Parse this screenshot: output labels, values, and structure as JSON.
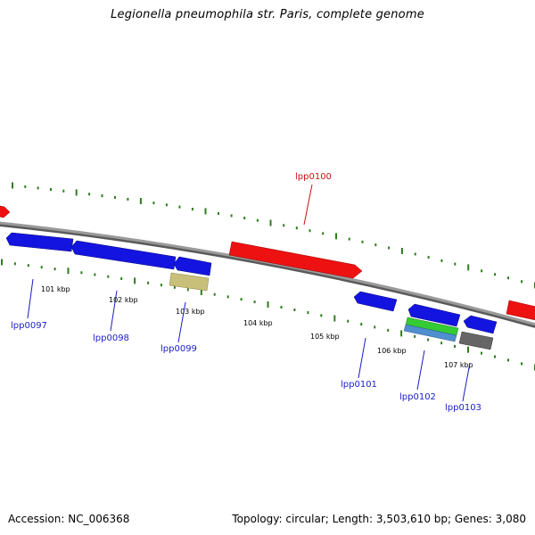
{
  "title": "Legionella pneumophila str. Paris, complete genome",
  "footer": {
    "accession": "Accession: NC_006368",
    "summary": "Topology: circular; Length: 3,503,610 bp; Genes: 3,080"
  },
  "colors": {
    "backbone": "#8a8a8a",
    "tick": "#2e7d1e",
    "forward_gene": "#ee1111",
    "reverse_gene": "#1414e0",
    "label_reverse": "#1c1cc8",
    "label_forward": "#cc1111",
    "rna_gene": "#c8c07a",
    "green_feature": "#33cc33",
    "steelblue_feature": "#4f8fcf",
    "grey_feature": "#666666"
  },
  "scale": {
    "unit": "kbp",
    "labels": [
      "101 kbp",
      "102 kbp",
      "103 kbp",
      "104 kbp",
      "105 kbp",
      "106 kbp",
      "107 kbp"
    ]
  },
  "genes": [
    {
      "id": "lpp0097",
      "label": "lpp0097",
      "strand": "reverse",
      "kind": "cds"
    },
    {
      "id": "lpp0098",
      "label": "lpp0098",
      "strand": "reverse",
      "kind": "cds"
    },
    {
      "id": "lpp0099",
      "label": "lpp0099",
      "strand": "reverse",
      "kind": "cds"
    },
    {
      "id": "lpp0100",
      "label": "lpp0100",
      "strand": "forward",
      "kind": "cds"
    },
    {
      "id": "lpp0101",
      "label": "lpp0101",
      "strand": "reverse",
      "kind": "cds"
    },
    {
      "id": "lpp0102",
      "label": "lpp0102",
      "strand": "reverse",
      "kind": "cds"
    },
    {
      "id": "lpp0103",
      "label": "lpp0103",
      "strand": "reverse",
      "kind": "cds"
    }
  ]
}
